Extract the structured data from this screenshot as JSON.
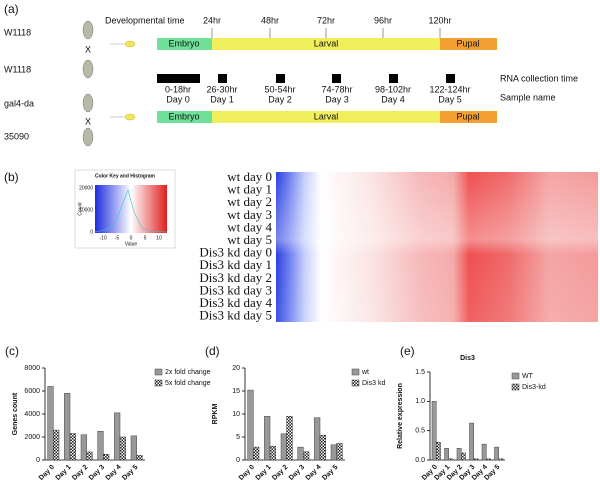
{
  "panel_a": {
    "label": "(a)",
    "axis_title": "Developmental time",
    "time_ticks": [
      "24hr",
      "48hr",
      "72hr",
      "96hr",
      "120hr"
    ],
    "cross1": {
      "parent1": "W1118",
      "cross": "X",
      "parent2": "W1118"
    },
    "cross2": {
      "parent1": "gal4-da",
      "cross": "X",
      "parent2": "35090"
    },
    "stages": [
      "Embryo",
      "Larval",
      "Pupal"
    ],
    "collection_label": "RNA collection time",
    "collection_times": [
      "0-18hr",
      "26-30hr",
      "50-54hr",
      "74-78hr",
      "98-102hr",
      "122-124hr"
    ],
    "sample_label": "Sample name",
    "samples": [
      "Day 0",
      "Day 1",
      "Day 2",
      "Day 3",
      "Day 4",
      "Day 5"
    ]
  },
  "panel_b": {
    "label": "(b)",
    "color_key": {
      "title": "Color Key and Histogram",
      "y_label": "Count",
      "y_ticks": [
        "0",
        "10000",
        "20000"
      ],
      "x_label": "Value",
      "x_ticks": [
        "-10",
        "-5",
        "0",
        "5",
        "10"
      ]
    },
    "rows": [
      "wt day 0",
      "wt day 1",
      "wt day 2",
      "wt day 3",
      "wt day 4",
      "wt day 5",
      "Dis3 kd day 0",
      "Dis3 kd day 1",
      "Dis3 kd day 2",
      "Dis3 kd day 3",
      "Dis3 kd day 4",
      "Dis3 kd day 5"
    ]
  },
  "chart_data": [
    {
      "type": "bar",
      "panel_label": "(c)",
      "y_label": "Genes count",
      "categories": [
        "Day 0",
        "Day 1",
        "Day 2",
        "Day 3",
        "Day 4",
        "Day 5"
      ],
      "series": [
        {
          "name": "2x fold change",
          "color": "#999999",
          "values": [
            6400,
            5800,
            2200,
            2500,
            4100,
            2100
          ]
        },
        {
          "name": "5x fold change",
          "color": "#333333",
          "pattern": "checker",
          "values": [
            2600,
            2300,
            700,
            500,
            2000,
            400
          ]
        }
      ],
      "ylim": [
        0,
        8000
      ],
      "yticks": [
        0,
        2000,
        4000,
        6000,
        8000
      ]
    },
    {
      "type": "bar",
      "panel_label": "(d)",
      "y_label": "RPKM",
      "categories": [
        "Day 0",
        "Day 1",
        "Day 2",
        "Day 3",
        "Day 4",
        "Day 5"
      ],
      "series": [
        {
          "name": "wt",
          "color": "#999999",
          "values": [
            15.2,
            9.5,
            5.7,
            2.8,
            9.2,
            3.3
          ]
        },
        {
          "name": "Dis3 kd",
          "color": "#333333",
          "pattern": "checker",
          "values": [
            2.8,
            3.0,
            9.5,
            1.8,
            5.4,
            3.6
          ]
        }
      ],
      "ylim": [
        0,
        20
      ],
      "yticks": [
        0,
        5,
        10,
        15,
        20
      ]
    },
    {
      "type": "bar",
      "panel_label": "(e)",
      "title": "Dis3",
      "y_label": "Relative expression",
      "categories": [
        "Day 0",
        "Day 1",
        "Day 2",
        "Day 3",
        "Day 4",
        "Day 5"
      ],
      "series": [
        {
          "name": "WT",
          "color": "#999999",
          "values": [
            1.0,
            0.2,
            0.2,
            0.63,
            0.27,
            0.22
          ]
        },
        {
          "name": "Dis3-kd",
          "color": "#333333",
          "pattern": "checker",
          "values": [
            0.3,
            0.02,
            0.12,
            0.02,
            0.02,
            0.02
          ]
        }
      ],
      "ylim": [
        0,
        1.5
      ],
      "yticks": [
        {
          "value": 0,
          "label": "0.0"
        },
        {
          "value": 0.5,
          "label": "0.5"
        },
        {
          "value": 1,
          "label": "1.0"
        },
        {
          "value": 1.5,
          "label": "1.5"
        }
      ]
    }
  ]
}
